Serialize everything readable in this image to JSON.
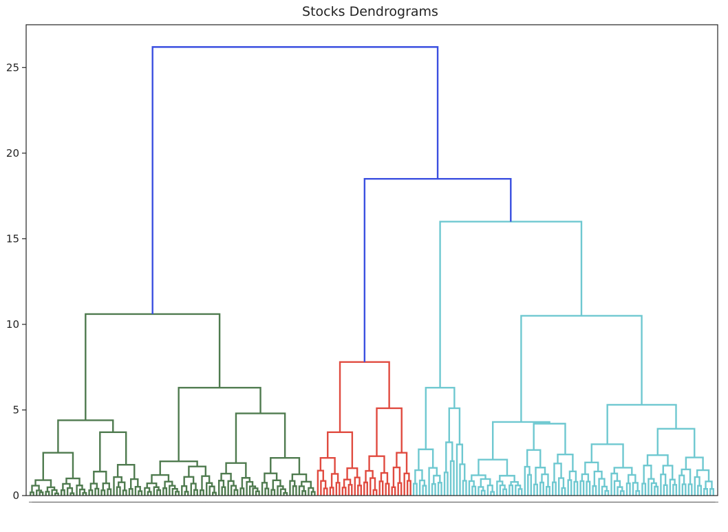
{
  "chart_data": {
    "type": "dendrogram",
    "title": "Stocks Dendrograms",
    "xlabel": "",
    "ylabel": "",
    "ylim": [
      0,
      27.5
    ],
    "y_ticks": [
      0,
      5,
      10,
      15,
      20,
      25
    ],
    "grid": false,
    "legend": "none",
    "colors": {
      "above_threshold": "#3a4fe0",
      "cluster_1": "#4e7a4e",
      "cluster_2": "#e04a3f",
      "cluster_3": "#6ec8d0",
      "axis": "#222222"
    },
    "tree": {
      "h": 26.2,
      "color": "above_threshold",
      "children": [
        {
          "h": 10.6,
          "color": "cluster_1",
          "children": [
            {
              "h": 4.4,
              "color": "cluster_1",
              "children": [
                {
                  "h": 2.5,
                  "color": "cluster_1",
                  "children": [
                    {
                      "h": 0.9,
                      "color": "cluster_1",
                      "leaves": 10
                    },
                    {
                      "h": 1.0,
                      "color": "cluster_1",
                      "leaves": 9
                    }
                  ]
                },
                {
                  "h": 3.7,
                  "color": "cluster_1",
                  "children": [
                    {
                      "h": 1.4,
                      "color": "cluster_1",
                      "leaves": 8
                    },
                    {
                      "h": 1.8,
                      "color": "cluster_1",
                      "leaves": 10
                    }
                  ]
                }
              ]
            },
            {
              "h": 6.3,
              "color": "cluster_1",
              "children": [
                {
                  "h": 2.0,
                  "color": "cluster_1",
                  "children": [
                    {
                      "h": 1.2,
                      "color": "cluster_1",
                      "leaves": 12
                    },
                    {
                      "h": 1.7,
                      "color": "cluster_1",
                      "leaves": 12
                    }
                  ]
                },
                {
                  "h": 4.8,
                  "color": "cluster_1",
                  "children": [
                    {
                      "h": 1.9,
                      "color": "cluster_1",
                      "leaves": 14
                    },
                    {
                      "h": 2.2,
                      "color": "cluster_1",
                      "leaves": 18
                    }
                  ]
                }
              ]
            }
          ]
        },
        {
          "h": 18.5,
          "color": "above_threshold",
          "children": [
            {
              "h": 7.8,
              "color": "cluster_2",
              "children": [
                {
                  "h": 3.7,
                  "color": "cluster_2",
                  "children": [
                    {
                      "h": 2.2,
                      "color": "cluster_2",
                      "leaves": 8
                    },
                    {
                      "h": 1.6,
                      "color": "cluster_2",
                      "leaves": 7
                    }
                  ]
                },
                {
                  "h": 5.1,
                  "color": "cluster_2",
                  "children": [
                    {
                      "h": 2.3,
                      "color": "cluster_2",
                      "leaves": 9
                    },
                    {
                      "h": 2.5,
                      "color": "cluster_2",
                      "leaves": 7
                    }
                  ]
                }
              ]
            },
            {
              "h": 16.0,
              "color": "cluster_3",
              "children": [
                {
                  "h": 6.3,
                  "color": "cluster_3",
                  "children": [
                    {
                      "h": 2.7,
                      "color": "cluster_3",
                      "leaves": 10
                    },
                    {
                      "h": 5.1,
                      "color": "cluster_3",
                      "leaves": 8
                    }
                  ]
                },
                {
                  "h": 10.5,
                  "color": "cluster_3",
                  "children": [
                    {
                      "h": 4.3,
                      "color": "cluster_3",
                      "children": [
                        {
                          "h": 2.1,
                          "color": "cluster_3",
                          "leaves": 18
                        },
                        {
                          "h": 4.2,
                          "color": "cluster_3",
                          "leaves": 18
                        }
                      ]
                    },
                    {
                      "h": 5.3,
                      "color": "cluster_3",
                      "children": [
                        {
                          "h": 3.0,
                          "color": "cluster_3",
                          "leaves": 20
                        },
                        {
                          "h": 3.9,
                          "color": "cluster_3",
                          "leaves": 24
                        }
                      ]
                    }
                  ]
                }
              ]
            }
          ]
        }
      ]
    }
  }
}
